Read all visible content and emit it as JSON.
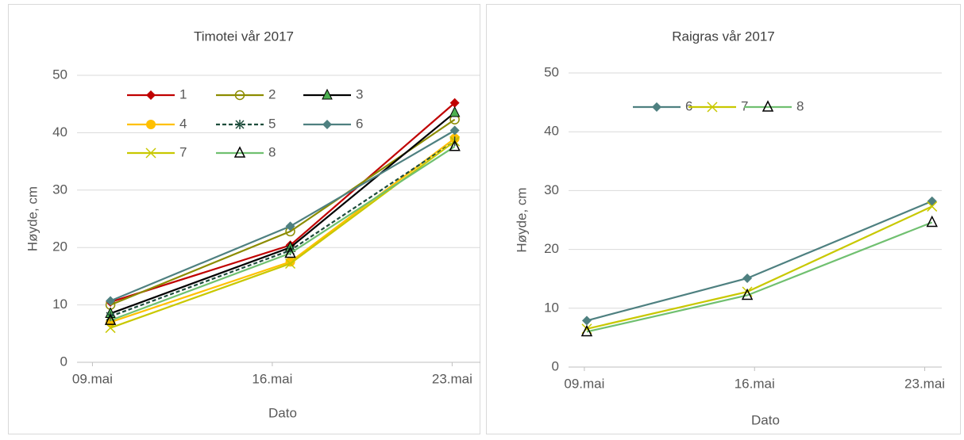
{
  "chart_data": [
    {
      "type": "line",
      "title": "Timotei vår 2017",
      "x_label": "Dato",
      "y_label": "Høyde, cm",
      "x": [
        9.7,
        16.7,
        23.1
      ],
      "xlim": [
        8.4,
        24.1
      ],
      "xticks": [
        {
          "value": 9,
          "label": "09.mai"
        },
        {
          "value": 16,
          "label": "16.mai"
        },
        {
          "value": 23,
          "label": "23.mai"
        }
      ],
      "ylim": [
        0,
        50
      ],
      "yticks": [
        0,
        10,
        20,
        30,
        40,
        50
      ],
      "grid": true,
      "series": [
        {
          "name": "1",
          "color": "#c00000",
          "marker": "diamond",
          "values": [
            10.5,
            20.4,
            45.2
          ]
        },
        {
          "name": "2",
          "color": "#8c8c00",
          "marker": "circle-open",
          "values": [
            10,
            22.8,
            42.3
          ]
        },
        {
          "name": "3",
          "color": "#000000",
          "marker": "triangle",
          "marker_color": "#4caf50",
          "values": [
            8.5,
            20,
            43.5
          ]
        },
        {
          "name": "4",
          "color": "#ffc000",
          "marker": "circle",
          "values": [
            7,
            17.5,
            39
          ]
        },
        {
          "name": "5",
          "color": "#1e4d3c",
          "marker": "asterisk",
          "dash": true,
          "values": [
            8,
            19.5,
            38.5
          ]
        },
        {
          "name": "6",
          "color": "#4e8080",
          "marker": "diamond",
          "values": [
            10.7,
            23.7,
            40.4
          ]
        },
        {
          "name": "7",
          "color": "#c8c800",
          "marker": "x",
          "values": [
            6,
            17.2,
            38.5
          ]
        },
        {
          "name": "8",
          "color": "#70c070",
          "marker": "triangle-open",
          "marker_color": "#000000",
          "values": [
            7.3,
            19,
            37.6
          ]
        }
      ]
    },
    {
      "type": "line",
      "title": "Raigras vår 2017",
      "x_label": "Dato",
      "y_label": "Høyde, cm",
      "x": [
        9.1,
        15.7,
        23.3
      ],
      "xlim": [
        8.35,
        23.7
      ],
      "xticks": [
        {
          "value": 9,
          "label": "09.mai"
        },
        {
          "value": 16,
          "label": "16.mai"
        },
        {
          "value": 23,
          "label": "23.mai"
        }
      ],
      "ylim": [
        0,
        50
      ],
      "yticks": [
        0,
        10,
        20,
        30,
        40,
        50
      ],
      "grid": true,
      "series": [
        {
          "name": "6",
          "color": "#4e8080",
          "marker": "diamond",
          "values": [
            7.9,
            15.1,
            28.2
          ]
        },
        {
          "name": "7",
          "color": "#c8c800",
          "marker": "x",
          "values": [
            6.5,
            12.8,
            27.3
          ]
        },
        {
          "name": "8",
          "color": "#70c070",
          "marker": "triangle-open",
          "marker_color": "#000000",
          "values": [
            6,
            12.2,
            24.6
          ]
        }
      ]
    }
  ]
}
